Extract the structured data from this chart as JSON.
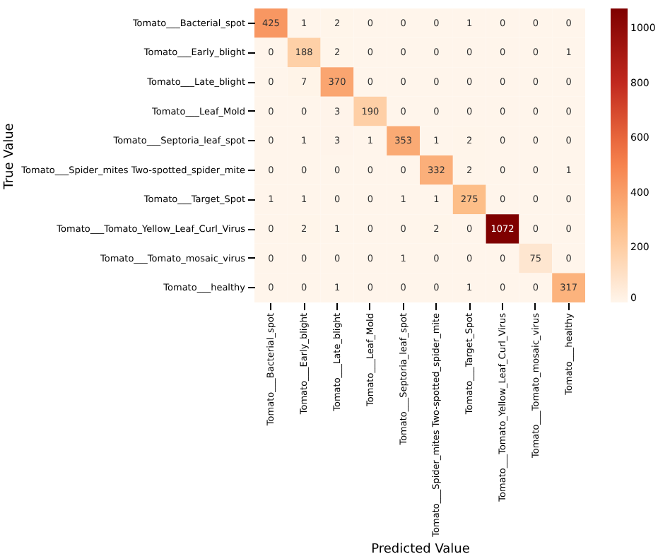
{
  "chart_data": {
    "type": "heatmap",
    "xlabel": "Predicted Value",
    "ylabel": "True Value",
    "categories": [
      "Tomato___Bacterial_spot",
      "Tomato___Early_blight",
      "Tomato___Late_blight",
      "Tomato___Leaf_Mold",
      "Tomato___Septoria_leaf_spot",
      "Tomato___Spider_mites Two-spotted_spider_mite",
      "Tomato___Target_Spot",
      "Tomato___Tomato_Yellow_Leaf_Curl_Virus",
      "Tomato___Tomato_mosaic_virus",
      "Tomato___healthy"
    ],
    "y_categories": [
      "Tomato___Bacterial_spot",
      "Tomato___Early_blight",
      "Tomato___Late_blight",
      "Tomato___Leaf_Mold",
      "Tomato___Septoria_leaf_spot",
      "Tomato___Spider_mites Two-spotted_spider_mite",
      "Tomato___Target_Spot",
      "Tomato___Tomato_Yellow_Leaf_Curl_Virus",
      "Tomato___Tomato_mosaic_virus",
      "Tomato___healthy"
    ],
    "cells": [
      [
        425,
        1,
        2,
        0,
        0,
        0,
        1,
        0,
        0,
        0
      ],
      [
        0,
        188,
        2,
        0,
        0,
        0,
        0,
        0,
        0,
        1
      ],
      [
        0,
        7,
        370,
        0,
        0,
        0,
        0,
        0,
        0,
        0
      ],
      [
        0,
        0,
        3,
        190,
        0,
        0,
        0,
        0,
        0,
        0
      ],
      [
        0,
        1,
        3,
        1,
        353,
        1,
        2,
        0,
        0,
        0
      ],
      [
        0,
        0,
        0,
        0,
        0,
        332,
        2,
        0,
        0,
        1
      ],
      [
        1,
        1,
        0,
        0,
        1,
        1,
        275,
        0,
        0,
        0
      ],
      [
        0,
        2,
        1,
        0,
        0,
        2,
        0,
        1072,
        0,
        0
      ],
      [
        0,
        0,
        0,
        0,
        1,
        0,
        0,
        0,
        75,
        0
      ],
      [
        0,
        0,
        1,
        0,
        0,
        0,
        1,
        0,
        0,
        317
      ]
    ],
    "data_labels": true,
    "clim": [
      0,
      1072
    ],
    "cticks": [
      0,
      200,
      400,
      600,
      800,
      1000
    ]
  }
}
